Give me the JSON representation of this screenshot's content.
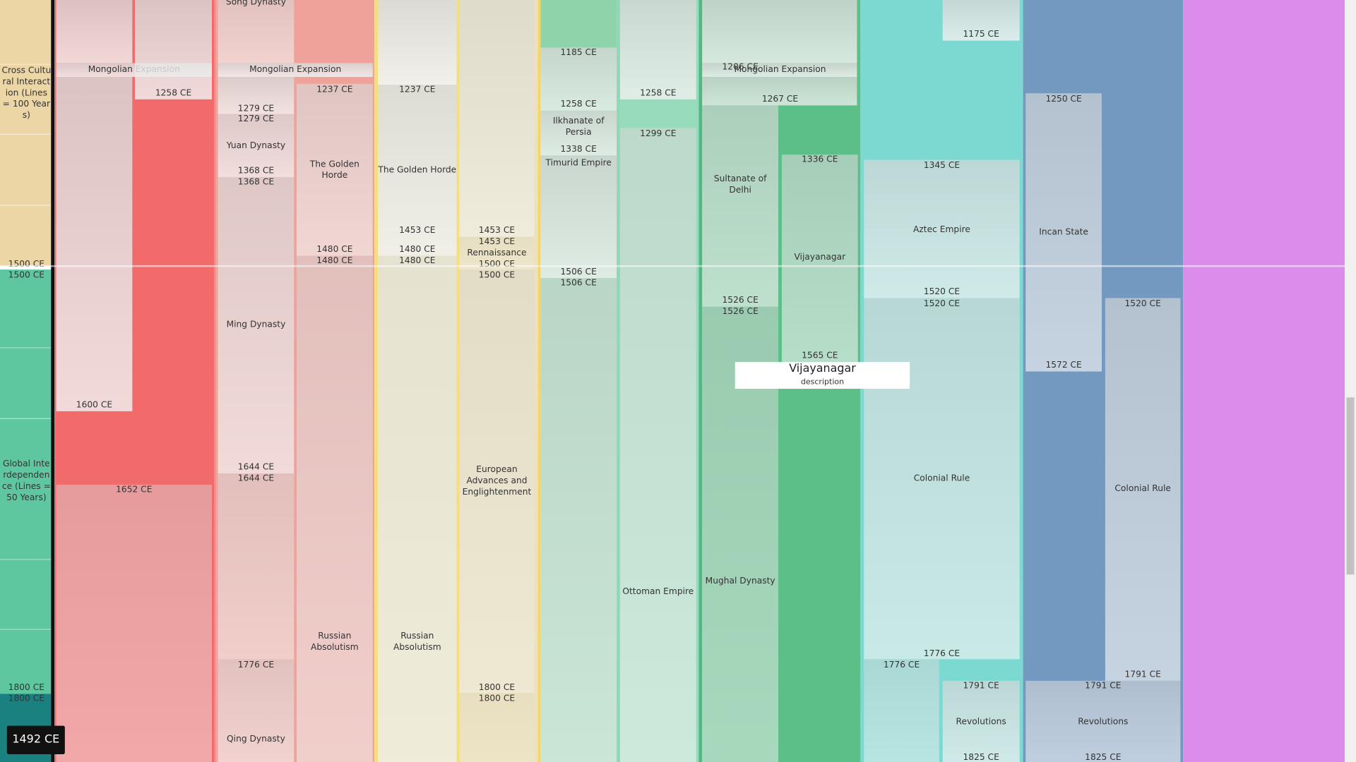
{
  "sidebar": {
    "eras": [
      "Cross Cultural Interaction (Lines = 100 Years)",
      "Global Interdependence (Lines = 50 Years)"
    ],
    "dates": [
      "1500 CE",
      "1500 CE",
      "1800 CE",
      "1800 CE"
    ]
  },
  "blocks": [
    {
      "texts": [
        "Mongolian Expansion"
      ]
    },
    {
      "texts": [
        "1600 CE"
      ]
    },
    {
      "texts": [
        "1258 CE"
      ]
    },
    {
      "texts": [
        "1652 CE"
      ]
    },
    {
      "texts": [
        "Song Dynasty"
      ]
    },
    {
      "texts": [
        "Mongolian Expansion"
      ]
    },
    {
      "texts": [
        "1279 CE"
      ]
    },
    {
      "texts": [
        "1279 CE",
        "Yuan Dynasty",
        "1368 CE"
      ]
    },
    {
      "texts": [
        "1368 CE",
        "Ming Dynasty",
        "1644 CE"
      ]
    },
    {
      "texts": [
        "1644 CE"
      ]
    },
    {
      "texts": [
        "1776 CE",
        "Qing Dynasty"
      ]
    },
    {
      "texts": [
        "1237 CE",
        "The Golden Horde",
        "1480 CE"
      ]
    },
    {
      "texts": [
        "1480 CE",
        "Russian Absolutism"
      ]
    },
    {
      "texts": [
        "1237 CE",
        "The Golden Horde",
        "1453 CE",
        "1480 CE"
      ]
    },
    {
      "texts": [
        "1480 CE",
        "Russian Absolutism"
      ]
    },
    {
      "texts": [
        "1453 CE"
      ]
    },
    {
      "texts": [
        "1453 CE",
        "Rennaissance",
        "1500 CE"
      ]
    },
    {
      "texts": [
        "1500 CE",
        "European Advances and Englightenment",
        "1800 CE"
      ]
    },
    {
      "texts": [
        "1800 CE"
      ]
    },
    {
      "texts": [
        "1185 CE",
        "1258 CE"
      ]
    },
    {
      "texts": [
        "Ilkhanate of Persia",
        "1338 CE"
      ]
    },
    {
      "texts": [
        "Timurid Empire",
        "1506 CE"
      ]
    },
    {
      "texts": [
        "1506 CE"
      ]
    },
    {
      "texts": [
        "1258 CE"
      ]
    },
    {
      "texts": [
        "1299 CE",
        "Ottoman Empire"
      ]
    },
    {
      "texts": [
        "1206 CE",
        "Mongolian Expansion"
      ]
    },
    {
      "texts": [
        "1267 CE"
      ]
    },
    {
      "texts": [
        "Sultanate of Delhi",
        "1526 CE"
      ]
    },
    {
      "texts": [
        "1526 CE",
        "Mughal Dynasty"
      ]
    },
    {
      "texts": [
        "1336 CE",
        "Vijayanagar",
        "1565 CE"
      ]
    },
    {
      "texts": [
        "1175 CE"
      ]
    },
    {
      "texts": [
        "1345 CE",
        "Aztec Empire",
        "1520 CE"
      ]
    },
    {
      "texts": [
        "1520 CE",
        "Colonial Rule",
        "1776 CE"
      ]
    },
    {
      "texts": [
        "1776 CE"
      ]
    },
    {
      "texts": [
        "1791 CE",
        "Revolutions",
        "1825 CE"
      ]
    },
    {
      "texts": [
        "1250 CE",
        "Incan State",
        "1572 CE"
      ]
    },
    {
      "texts": [
        "1520 CE",
        "Colonial Rule",
        "1791 CE"
      ]
    },
    {
      "texts": [
        "1791 CE",
        "Revolutions",
        "1825 CE"
      ]
    }
  ],
  "tooltip": {
    "title": "Vijayanagar",
    "description": "description"
  },
  "cursor": "1492 CE"
}
